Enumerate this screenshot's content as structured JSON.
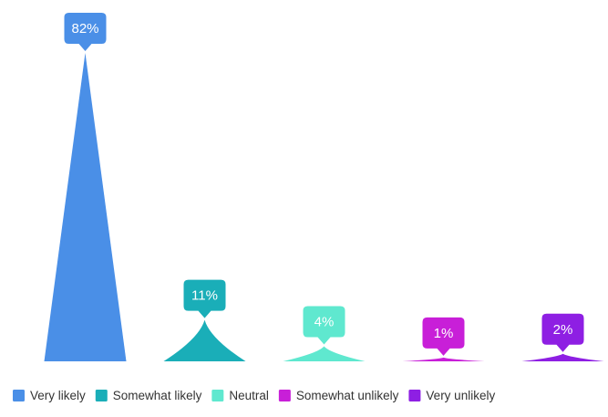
{
  "chart_data": {
    "type": "bar",
    "bar_shape": "triangle",
    "categories": [
      "Very likely",
      "Somewhat likely",
      "Neutral",
      "Somewhat unlikely",
      "Very unlikely"
    ],
    "values": [
      82,
      11,
      4,
      1,
      2
    ],
    "value_unit": "%",
    "data_labels": [
      "82%",
      "11%",
      "4%",
      "1%",
      "2%"
    ],
    "colors": [
      "#4a8fe7",
      "#1aaeb8",
      "#5fe8cf",
      "#c81fd8",
      "#8e1fe3"
    ],
    "ylim": [
      0,
      82
    ],
    "grid": false,
    "axes_visible": false,
    "legend": {
      "position": "bottom",
      "items": [
        "Very likely",
        "Somewhat likely",
        "Neutral",
        "Somewhat unlikely",
        "Very unlikely"
      ]
    }
  }
}
